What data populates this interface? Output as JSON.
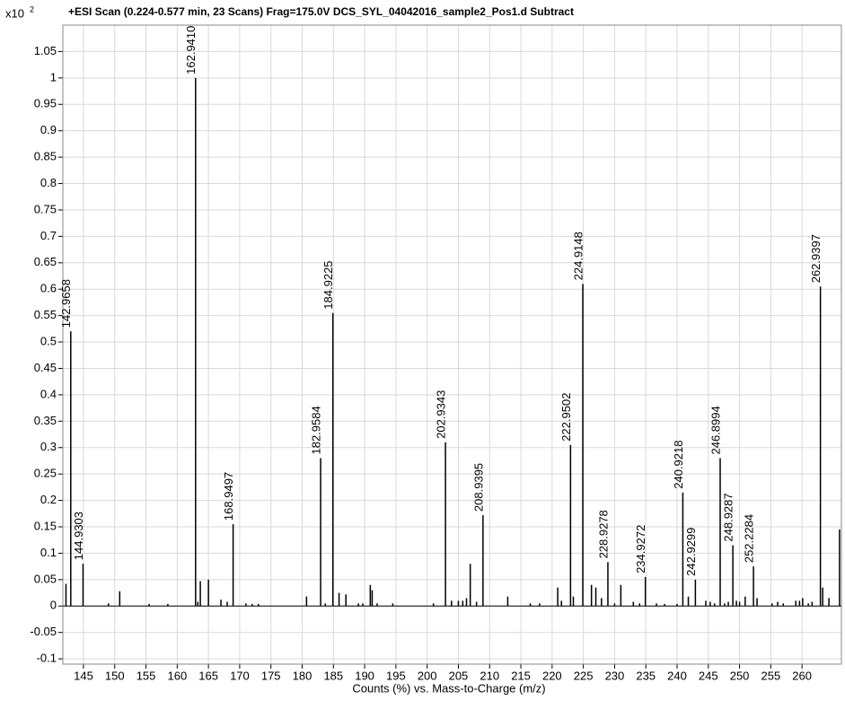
{
  "chart_data": {
    "type": "spectrum",
    "title": "+ESI Scan (0.224-0.577 min, 23 Scans) Frag=175.0V DCS_SYL_04042016_sample2_Pos1.d  Subtract",
    "y_multiplier": "x10",
    "y_exponent": "2",
    "x_label": "Counts (%) vs. Mass-to-Charge (m/z)",
    "color": "#000000",
    "grid": true,
    "xlim": [
      141.7,
      266.3
    ],
    "ylim": [
      -0.11,
      1.1
    ],
    "xticks": [
      145,
      150,
      155,
      160,
      165,
      170,
      175,
      180,
      185,
      190,
      195,
      200,
      205,
      210,
      215,
      220,
      225,
      230,
      235,
      240,
      245,
      250,
      255,
      260
    ],
    "yticks": [
      -0.1,
      -0.05,
      0,
      0.05,
      0.1,
      0.15,
      0.2,
      0.25,
      0.3,
      0.35,
      0.4,
      0.45,
      0.5,
      0.55,
      0.6,
      0.65,
      0.7,
      0.75,
      0.8,
      0.85,
      0.9,
      0.95,
      1,
      1.05
    ],
    "x": [
      142.2,
      142.9658,
      144.9303,
      149.0,
      150.8,
      155.5,
      158.5,
      162.941,
      163.3,
      163.7,
      165.0,
      167.0,
      168.0,
      168.9497,
      171.0,
      172.0,
      173.0,
      180.7,
      182.9584,
      183.7,
      184.9225,
      185.9,
      187.0,
      189.0,
      189.7,
      190.9,
      191.2,
      192.0,
      194.5,
      201.0,
      202.9343,
      203.9,
      205.0,
      205.7,
      206.3,
      206.9,
      207.9,
      208.9395,
      212.9,
      216.5,
      218.0,
      220.9,
      221.5,
      222.9502,
      223.4,
      224.9148,
      226.3,
      227.0,
      227.9,
      228.9278,
      230.0,
      231.0,
      233.0,
      234.0,
      234.9272,
      236.7,
      238.0,
      240.0,
      240.9218,
      241.8,
      242.9299,
      244.6,
      245.3,
      246.0,
      246.8994,
      247.6,
      248.2,
      248.9287,
      249.5,
      250.0,
      250.9,
      252.2284,
      252.8,
      255.2,
      256.1,
      257.0,
      259.0,
      259.6,
      260.1,
      261.0,
      261.6,
      262.9397,
      263.3,
      264.3,
      266.0
    ],
    "values": [
      0.042,
      0.52,
      0.08,
      0.005,
      0.028,
      0.004,
      0.004,
      1.0,
      0.008,
      0.047,
      0.05,
      0.012,
      0.008,
      0.155,
      0.005,
      0.004,
      0.004,
      0.018,
      0.28,
      0.005,
      0.555,
      0.025,
      0.022,
      0.005,
      0.005,
      0.04,
      0.03,
      0.005,
      0.005,
      0.005,
      0.31,
      0.01,
      0.01,
      0.01,
      0.015,
      0.08,
      0.008,
      0.172,
      0.018,
      0.005,
      0.005,
      0.035,
      0.01,
      0.305,
      0.018,
      0.61,
      0.04,
      0.035,
      0.015,
      0.083,
      0.005,
      0.04,
      0.008,
      0.005,
      0.055,
      0.005,
      0.004,
      0.004,
      0.215,
      0.018,
      0.05,
      0.01,
      0.008,
      0.005,
      0.28,
      0.005,
      0.008,
      0.115,
      0.01,
      0.008,
      0.018,
      0.075,
      0.015,
      0.005,
      0.008,
      0.005,
      0.01,
      0.01,
      0.015,
      0.005,
      0.008,
      0.605,
      0.035,
      0.015,
      0.145
    ],
    "x_labels": [
      null,
      "142.9658",
      "144.9303",
      null,
      null,
      null,
      null,
      "162.9410",
      null,
      null,
      null,
      null,
      null,
      "168.9497",
      null,
      null,
      null,
      null,
      "182.9584",
      null,
      "184.9225",
      null,
      null,
      null,
      null,
      null,
      null,
      null,
      null,
      null,
      "202.9343",
      null,
      null,
      null,
      null,
      null,
      null,
      "208.9395",
      null,
      null,
      null,
      null,
      null,
      "222.9502",
      null,
      "224.9148",
      null,
      null,
      null,
      "228.9278",
      null,
      null,
      null,
      null,
      "234.9272",
      null,
      null,
      null,
      "240.9218",
      null,
      "242.9299",
      null,
      null,
      null,
      "246.8994",
      null,
      null,
      "248.9287",
      null,
      null,
      null,
      "252.2284",
      null,
      null,
      null,
      null,
      null,
      null,
      null,
      null,
      null,
      "262.9397",
      null,
      null,
      null
    ]
  }
}
